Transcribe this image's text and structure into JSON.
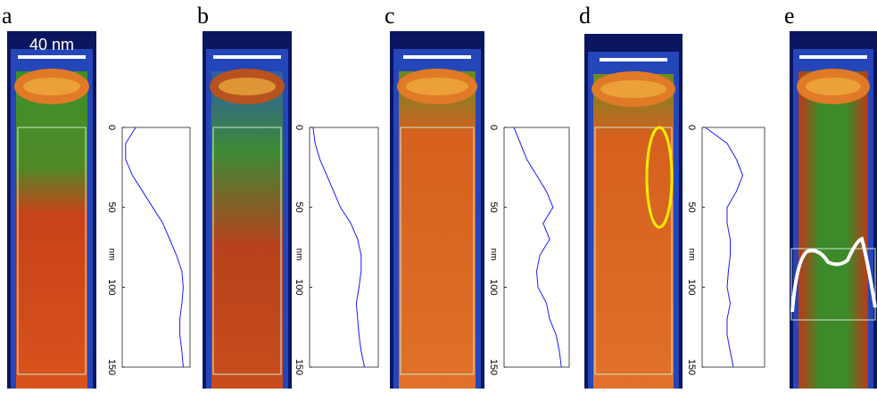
{
  "panels": [
    {
      "label": "a",
      "scale_label": "40 nm"
    },
    {
      "label": "b"
    },
    {
      "label": "c"
    },
    {
      "label": "d"
    },
    {
      "label": "e"
    }
  ],
  "profiles": [
    {
      "axis_label": "nm",
      "ticks": [
        0,
        50,
        100,
        150
      ],
      "ylim": [
        0,
        150
      ],
      "depth": [
        0,
        10,
        20,
        30,
        40,
        50,
        60,
        70,
        80,
        90,
        100,
        110,
        120,
        130,
        140,
        150
      ],
      "intensity": [
        20,
        5,
        5,
        15,
        30,
        45,
        60,
        70,
        80,
        88,
        90,
        88,
        85,
        85,
        88,
        90
      ]
    },
    {
      "axis_label": "nm",
      "ticks": [
        0,
        50,
        100,
        150
      ],
      "ylim": [
        0,
        150
      ],
      "depth": [
        0,
        10,
        20,
        30,
        40,
        50,
        60,
        70,
        80,
        90,
        100,
        110,
        120,
        130,
        140,
        150
      ],
      "intensity": [
        5,
        8,
        15,
        25,
        35,
        45,
        60,
        70,
        75,
        75,
        72,
        68,
        70,
        72,
        75,
        80
      ]
    },
    {
      "axis_label": "nm",
      "ticks": [
        0,
        50,
        100,
        150
      ],
      "ylim": [
        0,
        150
      ],
      "depth": [
        0,
        10,
        20,
        30,
        40,
        50,
        60,
        70,
        80,
        90,
        100,
        110,
        120,
        130,
        140,
        150
      ],
      "intensity": [
        15,
        25,
        35,
        50,
        65,
        75,
        60,
        70,
        55,
        50,
        52,
        65,
        70,
        80,
        85,
        88
      ]
    },
    {
      "axis_label": "nm",
      "ticks": [
        0,
        50,
        100,
        150
      ],
      "ylim": [
        0,
        150
      ],
      "depth": [
        0,
        10,
        20,
        30,
        40,
        50,
        60,
        70,
        80,
        90,
        100,
        110,
        120,
        130,
        140,
        150
      ],
      "intensity": [
        5,
        40,
        55,
        65,
        55,
        40,
        40,
        45,
        45,
        42,
        40,
        45,
        40,
        40,
        45,
        50
      ]
    }
  ]
}
